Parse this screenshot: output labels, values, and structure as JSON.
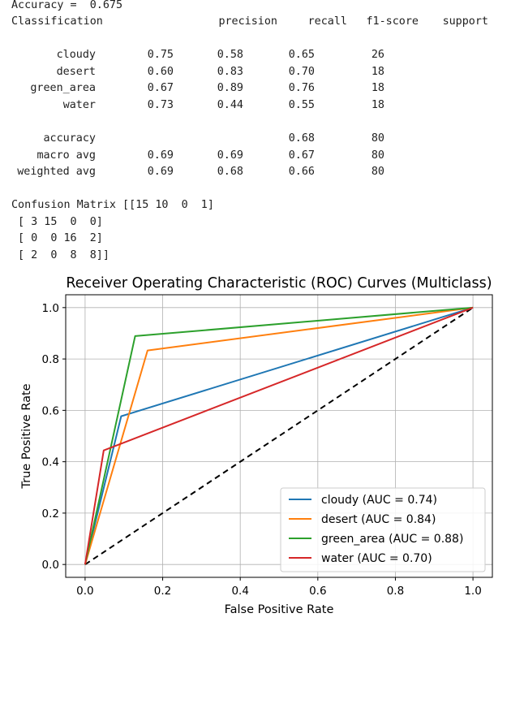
{
  "report": {
    "accuracy_line": "Accuracy =  0.675",
    "classification_label": "Classification",
    "headers": [
      "precision",
      "recall",
      "f1-score",
      "support"
    ],
    "rows": [
      {
        "label": "cloudy",
        "cells": [
          "0.75",
          "0.58",
          "0.65",
          "26"
        ]
      },
      {
        "label": "desert",
        "cells": [
          "0.60",
          "0.83",
          "0.70",
          "18"
        ]
      },
      {
        "label": "green_area",
        "cells": [
          "0.67",
          "0.89",
          "0.76",
          "18"
        ]
      },
      {
        "label": "water",
        "cells": [
          "0.73",
          "0.44",
          "0.55",
          "18"
        ]
      }
    ],
    "summary_rows": [
      {
        "label": "accuracy",
        "cells": [
          "",
          "",
          "0.68",
          "80"
        ]
      },
      {
        "label": "macro avg",
        "cells": [
          "0.69",
          "0.69",
          "0.67",
          "80"
        ]
      },
      {
        "label": "weighted avg",
        "cells": [
          "0.69",
          "0.68",
          "0.66",
          "80"
        ]
      }
    ],
    "confusion_lines": [
      "Confusion Matrix [[15 10  0  1]",
      " [ 3 15  0  0]",
      " [ 0  0 16  2]",
      " [ 2  0  8  8]]"
    ]
  },
  "chart_data": {
    "type": "line",
    "title": "Receiver Operating Characteristic (ROC) Curves (Multiclass)",
    "xlabel": "False Positive Rate",
    "ylabel": "True Positive Rate",
    "xlim": [
      -0.05,
      1.05
    ],
    "ylim": [
      -0.05,
      1.05
    ],
    "xticks": [
      0.0,
      0.2,
      0.4,
      0.6,
      0.8,
      1.0
    ],
    "yticks": [
      0.0,
      0.2,
      0.4,
      0.6,
      0.8,
      1.0
    ],
    "xtick_labels": [
      "0.0",
      "0.2",
      "0.4",
      "0.6",
      "0.8",
      "1.0"
    ],
    "ytick_labels": [
      "0.0",
      "0.2",
      "0.4",
      "0.6",
      "0.8",
      "1.0"
    ],
    "grid": true,
    "legend_position": "lower-right",
    "series": [
      {
        "name": "cloudy (AUC = 0.74)",
        "color": "#1f77b4",
        "x": [
          0.0,
          0.093,
          1.0
        ],
        "y": [
          0.0,
          0.577,
          1.0
        ]
      },
      {
        "name": "desert (AUC = 0.84)",
        "color": "#ff7f0e",
        "x": [
          0.0,
          0.161,
          1.0
        ],
        "y": [
          0.0,
          0.833,
          1.0
        ]
      },
      {
        "name": "green_area (AUC = 0.88)",
        "color": "#2ca02c",
        "x": [
          0.0,
          0.129,
          1.0
        ],
        "y": [
          0.0,
          0.889,
          1.0
        ]
      },
      {
        "name": "water (AUC = 0.70)",
        "color": "#d62728",
        "x": [
          0.0,
          0.048,
          1.0
        ],
        "y": [
          0.0,
          0.444,
          1.0
        ]
      }
    ],
    "reference_line": {
      "x": [
        0.0,
        1.0
      ],
      "y": [
        0.0,
        1.0
      ],
      "color": "#000000",
      "style": "dashed"
    }
  }
}
